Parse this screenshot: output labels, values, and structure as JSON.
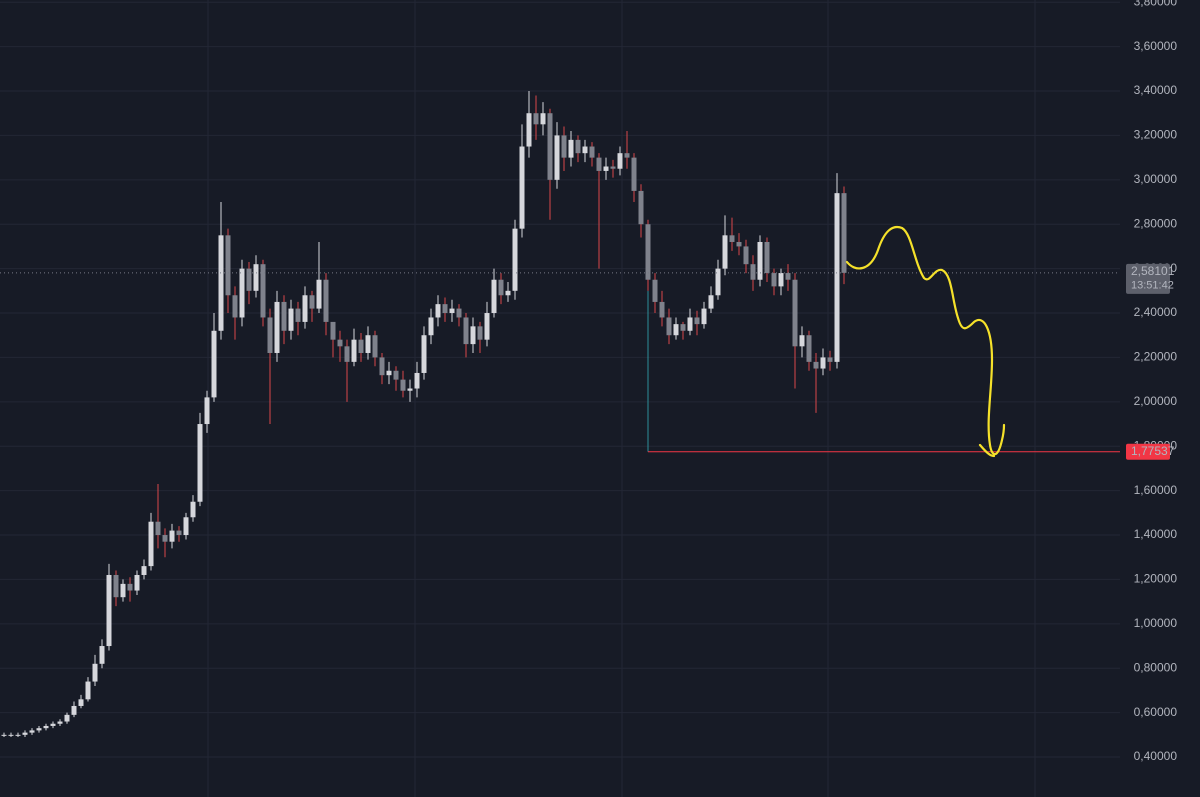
{
  "chart_data": {
    "type": "candlestick",
    "open": [
      0.5,
      0.5,
      0.5,
      0.5,
      0.51,
      0.52,
      0.53,
      0.54,
      0.55,
      0.56,
      0.59,
      0.63,
      0.66,
      0.74,
      0.82,
      0.9,
      1.22,
      1.12,
      1.18,
      1.15,
      1.22,
      1.26,
      1.46,
      1.4,
      1.37,
      1.42,
      1.4,
      1.48,
      1.55,
      1.9,
      2.02,
      2.32,
      2.75,
      2.48,
      2.38,
      2.6,
      2.5,
      2.62,
      2.38,
      2.22,
      2.45,
      2.32,
      2.42,
      2.36,
      2.48,
      2.42,
      2.55,
      2.36,
      2.28,
      2.25,
      2.18,
      2.28,
      2.22,
      2.3,
      2.2,
      2.12,
      2.14,
      2.1,
      2.05,
      2.06,
      2.13,
      2.3,
      2.38,
      2.44,
      2.4,
      2.42,
      2.38,
      2.26,
      2.34,
      2.28,
      2.4,
      2.55,
      2.48,
      2.5,
      2.78,
      3.15,
      3.3,
      3.25,
      3.3,
      3.0,
      3.2,
      3.1,
      3.18,
      3.12,
      3.15,
      3.1,
      3.04,
      3.06,
      3.05,
      3.12,
      3.1,
      2.95,
      2.8,
      2.55,
      2.45,
      2.38,
      2.3,
      2.35,
      2.32,
      2.38,
      2.35,
      2.42,
      2.48,
      2.6,
      2.75,
      2.72,
      2.7,
      2.62,
      2.55,
      2.72,
      2.58,
      2.52,
      2.58,
      2.55,
      2.25,
      2.3,
      2.18,
      2.15,
      2.2,
      2.18,
      2.94
    ],
    "high": [
      0.51,
      0.51,
      0.51,
      0.52,
      0.53,
      0.54,
      0.55,
      0.56,
      0.57,
      0.6,
      0.65,
      0.68,
      0.76,
      0.86,
      0.93,
      1.27,
      1.24,
      1.2,
      1.21,
      1.24,
      1.29,
      1.5,
      1.63,
      1.43,
      1.45,
      1.44,
      1.5,
      1.58,
      1.95,
      2.05,
      2.4,
      2.9,
      2.78,
      2.52,
      2.64,
      2.63,
      2.66,
      2.64,
      2.42,
      2.5,
      2.48,
      2.46,
      2.45,
      2.52,
      2.5,
      2.72,
      2.58,
      2.34,
      2.32,
      2.28,
      2.33,
      2.31,
      2.34,
      2.32,
      2.22,
      2.18,
      2.16,
      2.14,
      2.1,
      2.18,
      2.34,
      2.42,
      2.48,
      2.47,
      2.46,
      2.44,
      2.4,
      2.38,
      2.36,
      2.45,
      2.6,
      2.58,
      2.54,
      2.82,
      3.25,
      3.4,
      3.38,
      3.35,
      3.32,
      3.26,
      3.24,
      3.22,
      3.2,
      3.18,
      3.17,
      3.12,
      3.1,
      3.09,
      3.15,
      3.22,
      3.12,
      2.98,
      2.82,
      2.58,
      2.5,
      2.42,
      2.38,
      2.36,
      2.42,
      2.41,
      2.45,
      2.52,
      2.64,
      2.84,
      2.83,
      2.76,
      2.73,
      2.66,
      2.75,
      2.74,
      2.6,
      2.6,
      2.62,
      2.58,
      2.34,
      2.32,
      2.22,
      2.24,
      2.23,
      3.03,
      2.97
    ],
    "low": [
      0.49,
      0.49,
      0.49,
      0.49,
      0.5,
      0.51,
      0.52,
      0.53,
      0.54,
      0.55,
      0.58,
      0.62,
      0.65,
      0.72,
      0.8,
      0.88,
      1.08,
      1.1,
      1.1,
      1.13,
      1.2,
      1.24,
      1.34,
      1.3,
      1.34,
      1.37,
      1.38,
      1.46,
      1.53,
      1.86,
      2.0,
      2.28,
      2.4,
      2.28,
      2.34,
      2.44,
      2.47,
      2.34,
      1.9,
      2.18,
      2.26,
      2.28,
      2.3,
      2.33,
      2.36,
      2.4,
      2.3,
      2.2,
      2.18,
      2.0,
      2.16,
      2.18,
      2.19,
      2.16,
      2.08,
      2.08,
      2.05,
      2.02,
      2.0,
      2.02,
      2.1,
      2.26,
      2.34,
      2.36,
      2.36,
      2.34,
      2.2,
      2.22,
      2.22,
      2.25,
      2.38,
      2.44,
      2.45,
      2.46,
      2.74,
      3.1,
      3.18,
      3.2,
      2.82,
      2.96,
      3.04,
      3.06,
      3.08,
      3.08,
      3.06,
      2.6,
      3.0,
      3.01,
      3.02,
      3.05,
      2.9,
      2.74,
      2.5,
      2.4,
      2.34,
      2.26,
      2.28,
      2.28,
      2.3,
      2.3,
      2.33,
      2.4,
      2.46,
      2.57,
      2.68,
      2.66,
      2.58,
      2.5,
      2.52,
      2.54,
      2.48,
      2.48,
      2.5,
      2.06,
      2.2,
      2.14,
      1.95,
      2.12,
      2.14,
      2.15,
      2.53
    ],
    "close": [
      0.5,
      0.5,
      0.5,
      0.51,
      0.52,
      0.53,
      0.54,
      0.55,
      0.56,
      0.59,
      0.63,
      0.66,
      0.74,
      0.82,
      0.9,
      1.22,
      1.12,
      1.18,
      1.15,
      1.22,
      1.26,
      1.46,
      1.4,
      1.37,
      1.42,
      1.4,
      1.48,
      1.55,
      1.9,
      2.02,
      2.32,
      2.75,
      2.48,
      2.38,
      2.6,
      2.5,
      2.62,
      2.38,
      2.22,
      2.45,
      2.32,
      2.42,
      2.36,
      2.48,
      2.42,
      2.55,
      2.36,
      2.28,
      2.25,
      2.18,
      2.28,
      2.22,
      2.3,
      2.2,
      2.12,
      2.14,
      2.1,
      2.05,
      2.06,
      2.13,
      2.3,
      2.38,
      2.44,
      2.4,
      2.42,
      2.38,
      2.26,
      2.34,
      2.28,
      2.4,
      2.55,
      2.48,
      2.5,
      2.78,
      3.15,
      3.3,
      3.25,
      3.3,
      3.0,
      3.2,
      3.1,
      3.18,
      3.12,
      3.15,
      3.1,
      3.04,
      3.06,
      3.05,
      3.12,
      3.1,
      2.95,
      2.8,
      2.55,
      2.45,
      2.38,
      2.3,
      2.35,
      2.32,
      2.38,
      2.35,
      2.42,
      2.48,
      2.6,
      2.75,
      2.72,
      2.7,
      2.62,
      2.55,
      2.72,
      2.58,
      2.52,
      2.58,
      2.55,
      2.25,
      2.3,
      2.18,
      2.15,
      2.2,
      2.18,
      2.94,
      2.58101
    ],
    "colors": {
      "up": "#d6d7dc",
      "down": "#7f828c",
      "down_wick": "#d9474b"
    },
    "ylim": [
      0.22,
      3.81
    ],
    "yticks": [
      {
        "value": 0.4,
        "label": "0,40000"
      },
      {
        "value": 0.6,
        "label": "0,60000"
      },
      {
        "value": 0.8,
        "label": "0,80000"
      },
      {
        "value": 1.0,
        "label": "1,00000"
      },
      {
        "value": 1.2,
        "label": "1,20000"
      },
      {
        "value": 1.4,
        "label": "1,40000"
      },
      {
        "value": 1.6,
        "label": "1,60000"
      },
      {
        "value": 1.8,
        "label": "1,80000"
      },
      {
        "value": 2.0,
        "label": "2,00000"
      },
      {
        "value": 2.2,
        "label": "2,20000"
      },
      {
        "value": 2.4,
        "label": "2,40000"
      },
      {
        "value": 2.6,
        "label": "2,60000"
      },
      {
        "value": 2.8,
        "label": "2,80000"
      },
      {
        "value": 3.0,
        "label": "3,00000"
      },
      {
        "value": 3.2,
        "label": "3,20000"
      },
      {
        "value": 3.4,
        "label": "3,40000"
      },
      {
        "value": 3.6,
        "label": "3,60000"
      },
      {
        "value": 3.8,
        "label": "3,80000"
      }
    ],
    "grid": true,
    "last_price": {
      "value": 2.58101,
      "label": "2,58101"
    },
    "countdown": "13:51:42",
    "level": {
      "value": 1.77537,
      "label": "1,77537",
      "color": "#f23645"
    }
  }
}
